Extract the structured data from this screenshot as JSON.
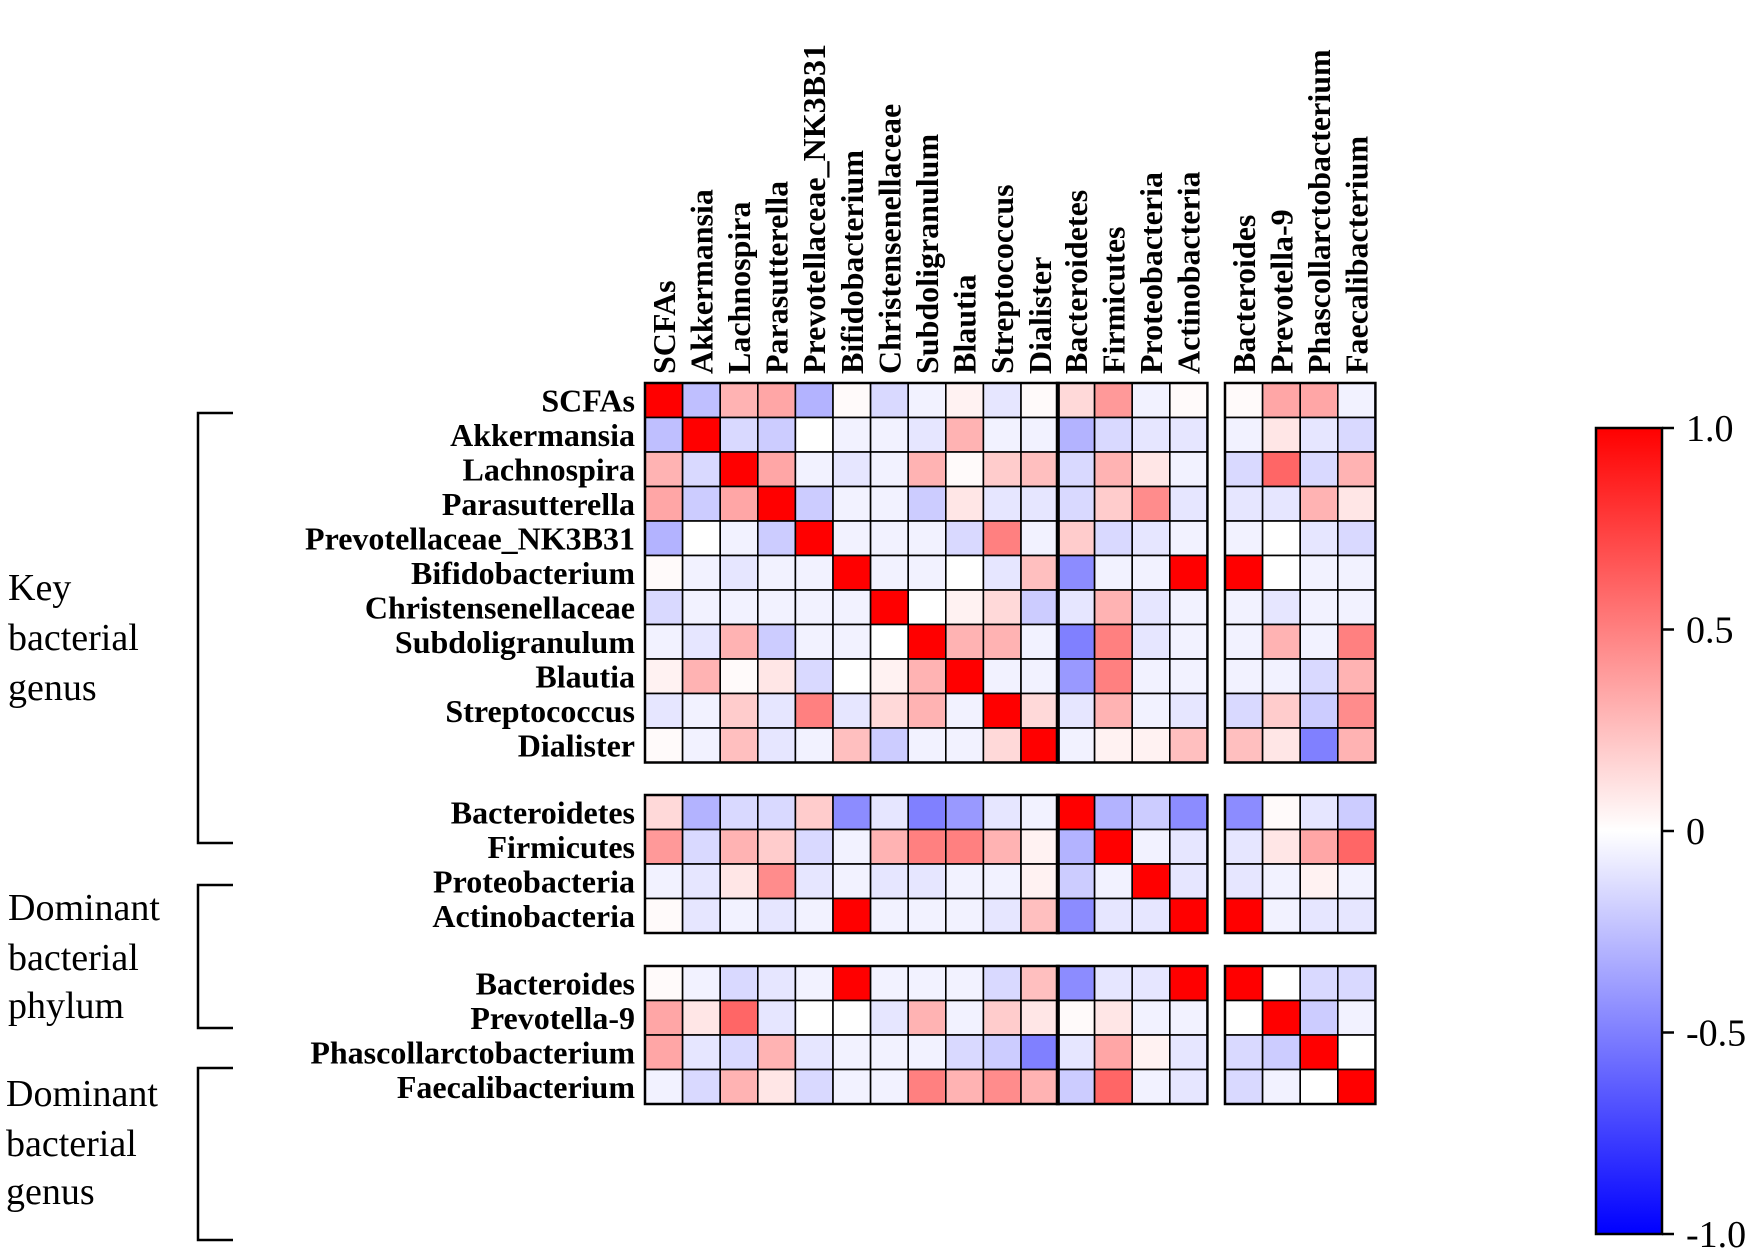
{
  "chart_data": {
    "type": "heatmap",
    "title": "",
    "variables": [
      "SCFAs",
      "Akkermansia",
      "Lachnospira",
      "Parasutterella",
      "Prevotellaceae_NK3B31",
      "Bifidobacterium",
      "Christensenellaceae",
      "Subdoligranulum",
      "Blautia",
      "Streptococcus",
      "Dialister",
      "Bacteroidetes",
      "Firmicutes",
      "Proteobacteria",
      "Actinobacteria",
      "Bacteroides",
      "Prevotella-9",
      "Phascollarctobacterium",
      "Faecalibacterium"
    ],
    "groups": [
      {
        "name": "Key bacterial genus",
        "lines": [
          "Key",
          "bacterial",
          "genus"
        ],
        "count": 11
      },
      {
        "name": "Dominant bacterial phylum",
        "lines": [
          "Dominant",
          "bacterial",
          "phylum"
        ],
        "count": 4
      },
      {
        "name": "Dominant bacterial genus",
        "lines": [
          "Dominant",
          "bacterial",
          "genus"
        ],
        "count": 4
      }
    ],
    "colorbar": {
      "min": -1.0,
      "max": 1.0,
      "ticks": [
        "1.0",
        "0.5",
        "0",
        "-0.5",
        "-1.0"
      ],
      "colors": {
        "low": "#0000ff",
        "mid": "#ffffff",
        "high": "#ff0000"
      }
    },
    "matrix": [
      [
        1.0,
        -0.25,
        0.3,
        0.35,
        -0.3,
        0.02,
        -0.15,
        -0.05,
        0.05,
        -0.1,
        0.02,
        0.15,
        0.4,
        -0.05,
        0.02,
        0.02,
        0.35,
        0.35,
        -0.05
      ],
      [
        -0.25,
        1.0,
        -0.15,
        -0.2,
        0.0,
        -0.05,
        -0.05,
        -0.1,
        0.3,
        -0.05,
        -0.05,
        -0.3,
        -0.15,
        -0.1,
        -0.1,
        -0.05,
        0.1,
        -0.1,
        -0.15
      ],
      [
        0.3,
        -0.15,
        1.0,
        0.35,
        -0.05,
        -0.1,
        -0.05,
        0.3,
        0.02,
        0.2,
        0.25,
        -0.15,
        0.3,
        0.1,
        -0.05,
        -0.15,
        0.6,
        -0.15,
        0.3
      ],
      [
        0.35,
        -0.2,
        0.35,
        1.0,
        -0.2,
        -0.05,
        -0.05,
        -0.2,
        0.1,
        -0.1,
        -0.1,
        -0.15,
        0.2,
        0.45,
        -0.1,
        -0.1,
        -0.1,
        0.3,
        0.1
      ],
      [
        -0.3,
        0.0,
        -0.05,
        -0.2,
        1.0,
        -0.05,
        -0.05,
        -0.05,
        -0.15,
        0.5,
        -0.05,
        0.2,
        -0.15,
        -0.1,
        -0.05,
        -0.05,
        0.0,
        -0.1,
        -0.15
      ],
      [
        0.02,
        -0.05,
        -0.1,
        -0.05,
        -0.05,
        1.0,
        -0.05,
        -0.05,
        0.0,
        -0.1,
        0.25,
        -0.45,
        -0.05,
        -0.05,
        1.0,
        1.0,
        0.0,
        -0.05,
        -0.05
      ],
      [
        -0.15,
        -0.05,
        -0.05,
        -0.05,
        -0.05,
        -0.05,
        1.0,
        0.0,
        0.05,
        0.15,
        -0.2,
        -0.1,
        0.3,
        -0.1,
        -0.05,
        -0.05,
        -0.1,
        -0.05,
        -0.05
      ],
      [
        -0.05,
        -0.1,
        0.3,
        -0.2,
        -0.05,
        -0.05,
        0.0,
        1.0,
        0.3,
        0.3,
        -0.05,
        -0.5,
        0.5,
        -0.1,
        -0.05,
        -0.05,
        0.3,
        -0.05,
        0.5
      ],
      [
        0.05,
        0.3,
        0.02,
        0.1,
        -0.15,
        0.0,
        0.05,
        0.3,
        1.0,
        -0.05,
        -0.05,
        -0.4,
        0.5,
        -0.05,
        -0.05,
        -0.05,
        -0.05,
        -0.15,
        0.3
      ],
      [
        -0.1,
        -0.05,
        0.2,
        -0.1,
        0.5,
        -0.1,
        0.15,
        0.3,
        -0.05,
        1.0,
        0.15,
        -0.1,
        0.3,
        -0.05,
        -0.1,
        -0.15,
        0.2,
        -0.2,
        0.45
      ],
      [
        0.02,
        -0.05,
        0.25,
        -0.1,
        -0.05,
        0.25,
        -0.2,
        -0.05,
        -0.05,
        0.15,
        1.0,
        -0.05,
        0.05,
        0.05,
        0.25,
        0.25,
        0.1,
        -0.5,
        0.3
      ],
      [
        0.15,
        -0.3,
        -0.15,
        -0.15,
        0.2,
        -0.45,
        -0.1,
        -0.5,
        -0.4,
        -0.1,
        -0.05,
        1.0,
        -0.3,
        -0.2,
        -0.45,
        -0.45,
        0.02,
        -0.1,
        -0.2
      ],
      [
        0.4,
        -0.15,
        0.3,
        0.2,
        -0.15,
        -0.05,
        0.3,
        0.5,
        0.5,
        0.3,
        0.05,
        -0.3,
        1.0,
        -0.05,
        -0.1,
        -0.1,
        0.1,
        0.35,
        0.6
      ],
      [
        -0.05,
        -0.1,
        0.1,
        0.45,
        -0.1,
        -0.05,
        -0.1,
        -0.1,
        -0.05,
        -0.05,
        0.05,
        -0.2,
        -0.05,
        1.0,
        -0.1,
        -0.1,
        -0.05,
        0.05,
        -0.05
      ],
      [
        0.02,
        -0.1,
        -0.05,
        -0.1,
        -0.05,
        1.0,
        -0.05,
        -0.05,
        -0.05,
        -0.1,
        0.25,
        -0.45,
        -0.1,
        -0.1,
        1.0,
        1.0,
        -0.05,
        -0.1,
        -0.1
      ],
      [
        0.02,
        -0.05,
        -0.15,
        -0.1,
        -0.05,
        1.0,
        -0.05,
        -0.05,
        -0.05,
        -0.15,
        0.25,
        -0.45,
        -0.1,
        -0.1,
        1.0,
        1.0,
        0.0,
        -0.15,
        -0.15
      ],
      [
        0.35,
        0.1,
        0.6,
        -0.1,
        0.0,
        0.0,
        -0.1,
        0.3,
        -0.05,
        0.2,
        0.1,
        0.02,
        0.1,
        -0.05,
        -0.05,
        0.0,
        1.0,
        -0.2,
        -0.05
      ],
      [
        0.35,
        -0.1,
        -0.15,
        0.3,
        -0.1,
        -0.05,
        -0.05,
        -0.05,
        -0.15,
        -0.2,
        -0.5,
        -0.1,
        0.35,
        0.05,
        -0.1,
        -0.15,
        -0.2,
        1.0,
        0.0
      ],
      [
        -0.05,
        -0.15,
        0.3,
        0.1,
        -0.15,
        -0.05,
        -0.05,
        0.5,
        0.3,
        0.45,
        0.3,
        -0.2,
        0.6,
        -0.05,
        -0.1,
        -0.15,
        -0.05,
        0.0,
        1.0
      ]
    ]
  }
}
